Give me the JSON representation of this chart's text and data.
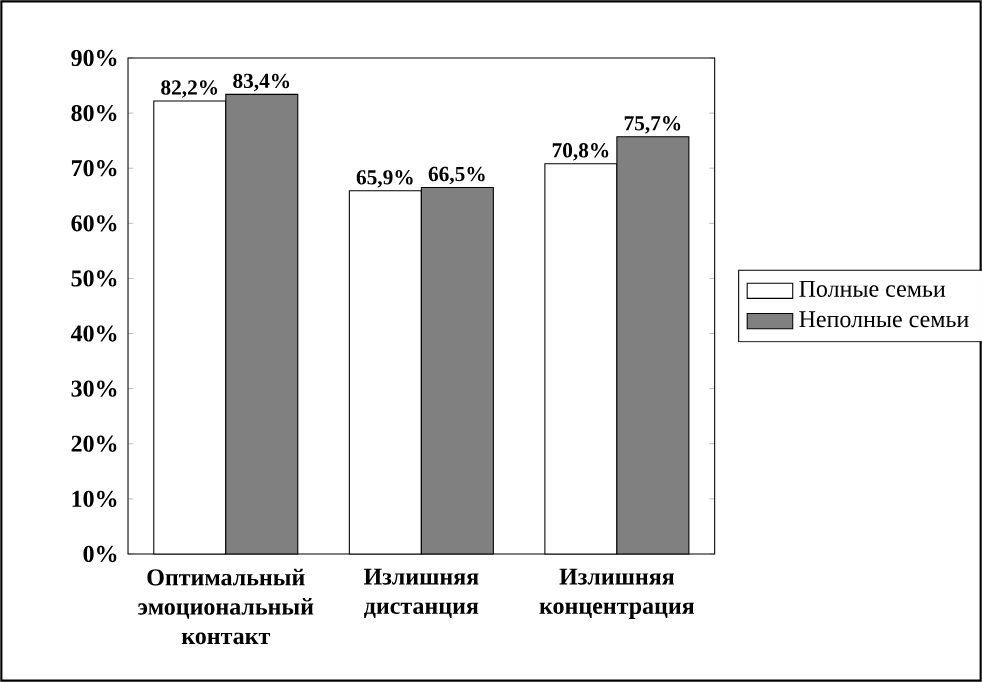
{
  "chart_data": {
    "type": "bar",
    "categories": [
      "Оптимальный эмоциональный контакт",
      "Излишняя дистанция",
      "Излишняя концентрация"
    ],
    "series": [
      {
        "name": "Полные семьи",
        "color": "#ffffff",
        "values": [
          82.2,
          65.9,
          70.8
        ],
        "value_labels": [
          "82,2%",
          "65,9%",
          "70,8%"
        ]
      },
      {
        "name": "Неполные семьи",
        "color": "#808080",
        "values": [
          83.4,
          66.5,
          75.7
        ],
        "value_labels": [
          "83,4%",
          "66,5%",
          "75,7%"
        ]
      }
    ],
    "ylim": [
      0,
      90
    ],
    "yticks": [
      {
        "value": 0,
        "label": "0%"
      },
      {
        "value": 10,
        "label": "10%"
      },
      {
        "value": 20,
        "label": "20%"
      },
      {
        "value": 30,
        "label": "30%"
      },
      {
        "value": 40,
        "label": "40%"
      },
      {
        "value": 50,
        "label": "50%"
      },
      {
        "value": 60,
        "label": "60%"
      },
      {
        "value": 70,
        "label": "70%"
      },
      {
        "value": 80,
        "label": "80%"
      },
      {
        "value": 90,
        "label": "90%"
      }
    ],
    "grid": false,
    "legend": "right"
  }
}
